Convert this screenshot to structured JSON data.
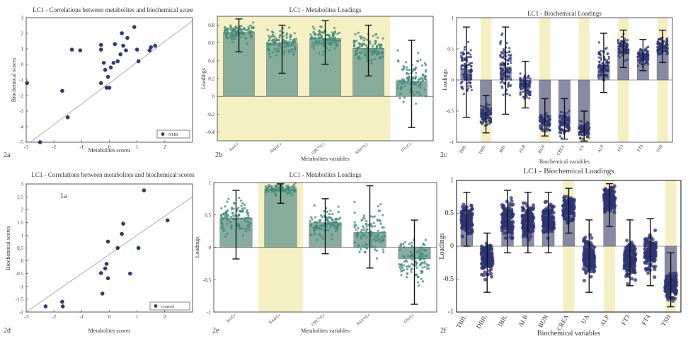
{
  "chart_data": [
    {
      "id": "2a",
      "type": "scatter",
      "title": "LC1 - Correlations between metabolites and biochemical score",
      "xlabel": "Metabolites scores",
      "ylabel": "Biochemical scores",
      "xlim": [
        -3,
        3
      ],
      "ylim": [
        -5,
        3
      ],
      "xticks": [
        "-3",
        "-2",
        "-1",
        "0",
        "1",
        "2"
      ],
      "yticks": [
        "3",
        "2",
        "1",
        "0",
        "-1",
        "-2",
        "-3",
        "-4",
        "-5"
      ],
      "legend": "NHB",
      "panel_label": "2a",
      "fit_line": [
        [
          -3,
          -5.2
        ],
        [
          3,
          2.8
        ]
      ],
      "points": [
        [
          -2.97,
          -1.2
        ],
        [
          -2.5,
          -5.0
        ],
        [
          -1.7,
          -1.7
        ],
        [
          -1.5,
          -3.4
        ],
        [
          -1.35,
          0.95
        ],
        [
          -1.05,
          0.9
        ],
        [
          -0.3,
          0.95
        ],
        [
          -0.3,
          -1.2
        ],
        [
          -0.3,
          1.25
        ],
        [
          -0.2,
          0.1
        ],
        [
          -0.15,
          -0.35
        ],
        [
          -0.05,
          -0.8
        ],
        [
          -0.1,
          -1.5
        ],
        [
          0.0,
          -1.5
        ],
        [
          0.05,
          -0.2
        ],
        [
          0.15,
          0.1
        ],
        [
          0.2,
          1.3
        ],
        [
          0.3,
          0.2
        ],
        [
          0.4,
          0.65
        ],
        [
          0.45,
          2.0
        ],
        [
          0.5,
          1.2
        ],
        [
          0.6,
          0.9
        ],
        [
          0.65,
          1.7
        ],
        [
          0.9,
          2.4
        ],
        [
          1.0,
          0.95
        ],
        [
          1.05,
          0.2
        ],
        [
          1.45,
          0.9
        ],
        [
          1.5,
          1.1
        ],
        [
          1.65,
          1.2
        ]
      ]
    },
    {
      "id": "2b",
      "type": "bar",
      "title": "LC1 - Metabolites Loadings",
      "xlabel": "Metabolites variables",
      "ylabel": "Loadings",
      "ylim": [
        -0.5,
        0.9
      ],
      "yticks": [
        "0.8",
        "0.6",
        "0.4",
        "0.2",
        "0",
        "-0.2",
        "-0.4"
      ],
      "categories": [
        "Ins/Cr",
        "NAA/Cr",
        "GPC*/Cr",
        "NAA*/Cr",
        "Glx/Cr"
      ],
      "values": [
        0.72,
        0.6,
        0.65,
        0.54,
        0.17
      ],
      "err_low": [
        0.5,
        0.26,
        0.36,
        0.23,
        -0.35
      ],
      "err_high": [
        0.87,
        0.8,
        0.85,
        0.8,
        0.63
      ],
      "highlight": [
        1,
        1,
        1,
        1,
        0
      ],
      "panel_label": "2b"
    },
    {
      "id": "2c",
      "type": "bar",
      "title": "LC1 - Biochemical Loadings",
      "xlabel": "Biochemical variables",
      "ylabel": "Loadings",
      "ylim": [
        -1,
        1
      ],
      "yticks": [
        "1",
        "0.5",
        "0",
        "-0.5",
        "-1"
      ],
      "categories": [
        "TBIL",
        "DBIL",
        "IBIL",
        "ALB",
        "BUN",
        "CREA",
        "UA",
        "ALP",
        "FT3",
        "FT4",
        "TSH"
      ],
      "values": [
        0.17,
        -0.57,
        0.21,
        -0.11,
        -0.68,
        -0.7,
        -0.8,
        0.24,
        0.5,
        0.38,
        0.54
      ],
      "err_low": [
        -0.6,
        -0.85,
        -0.55,
        -0.45,
        -0.9,
        -0.95,
        -0.98,
        -0.2,
        0.2,
        0.15,
        0.28
      ],
      "err_high": [
        0.85,
        -0.25,
        0.85,
        0.3,
        -0.3,
        -0.3,
        -0.5,
        0.75,
        0.8,
        0.65,
        0.8
      ],
      "highlight": [
        0,
        1,
        0,
        0,
        1,
        0,
        1,
        0,
        1,
        0,
        1
      ],
      "panel_label": "2c"
    },
    {
      "id": "2d",
      "type": "scatter",
      "title": "LC1 - Correlations between metabolites and biochemical scores",
      "xlabel": "Metabolites scores",
      "ylabel": "Biochemical scores",
      "xlim": [
        -3,
        3
      ],
      "ylim": [
        -2,
        3
      ],
      "xticks": [
        "-3",
        "-2",
        "-1",
        "0",
        "1",
        "2"
      ],
      "yticks": [
        "3",
        "2.5",
        "2",
        "1.5",
        "1",
        "0.5",
        "0",
        "-0.5",
        "-1",
        "-1.5",
        "-2"
      ],
      "legend": "control",
      "panel_label": "2d",
      "annotation": "1a",
      "fit_line": [
        [
          -3,
          -2.0
        ],
        [
          3,
          2.5
        ]
      ],
      "points": [
        [
          -2.3,
          -1.78
        ],
        [
          -1.7,
          -1.6
        ],
        [
          -1.68,
          -1.78
        ],
        [
          -0.3,
          -0.48
        ],
        [
          -0.25,
          -1.28
        ],
        [
          -0.15,
          -0.3
        ],
        [
          -0.1,
          -0.12
        ],
        [
          -0.05,
          -0.68
        ],
        [
          -0.05,
          0.75
        ],
        [
          0.3,
          0.5
        ],
        [
          0.45,
          1.05
        ],
        [
          0.5,
          1.45
        ],
        [
          0.75,
          -0.5
        ],
        [
          1.05,
          0.5
        ],
        [
          1.25,
          2.75
        ],
        [
          2.1,
          1.58
        ]
      ]
    },
    {
      "id": "2e",
      "type": "bar",
      "title": "LC1 - Metabolites Loadings",
      "xlabel": "Metabolites variables",
      "ylabel": "Loadings",
      "ylim": [
        -1,
        1
      ],
      "yticks": [
        "1",
        "0.5",
        "0",
        "-0.5",
        "-1"
      ],
      "categories": [
        "Ins/Cr",
        "NAA/Cr",
        "GPC*/Cr",
        "NAA*/Cr",
        "Glx/Cr"
      ],
      "values": [
        0.45,
        0.9,
        0.38,
        0.23,
        -0.18
      ],
      "err_low": [
        -0.18,
        0.68,
        -0.1,
        -0.32,
        -0.88
      ],
      "err_high": [
        0.88,
        0.98,
        0.75,
        0.95,
        0.42
      ],
      "highlight": [
        0,
        1,
        0,
        0,
        0
      ],
      "panel_label": "2e"
    },
    {
      "id": "2f",
      "type": "bar",
      "title": "LC1 - Biochemical Loadings",
      "xlabel": "Biochemical variables",
      "ylabel": "Loadings",
      "ylim": [
        -1,
        1
      ],
      "yticks": [
        "1",
        "0.5",
        "0",
        "-0.5",
        "-1"
      ],
      "categories": [
        "TBIL",
        "DBIL",
        "IBIL",
        "ALB",
        "BUN",
        "CREA",
        "UA",
        "ALP",
        "FT3",
        "FT4",
        "TSH"
      ],
      "values": [
        0.4,
        -0.2,
        0.4,
        0.4,
        0.4,
        0.57,
        -0.15,
        0.72,
        -0.2,
        -0.12,
        -0.6
      ],
      "err_low": [
        0.0,
        -0.7,
        -0.1,
        -0.1,
        -0.1,
        0.2,
        -0.7,
        0.3,
        -0.6,
        -0.6,
        -0.92
      ],
      "err_high": [
        0.82,
        0.2,
        0.85,
        0.82,
        0.82,
        0.88,
        0.4,
        0.95,
        0.4,
        0.42,
        -0.1
      ],
      "highlight": [
        0,
        0,
        0,
        0,
        0,
        1,
        0,
        1,
        0,
        0,
        1
      ],
      "panel_label": "2f"
    }
  ],
  "colors": {
    "scatter_point": "#2e3c78",
    "scatter_edge": "#1b2a5c",
    "fit_line": "#9a9a9a",
    "metab_bar": "#7aa596",
    "metab_jitter": "#3e8a7a",
    "bio_bar": "#7d7fa2",
    "bio_jitter": "#2e3474",
    "highlight": "#f5f0c4",
    "axis": "#333333",
    "text": "#333333"
  }
}
